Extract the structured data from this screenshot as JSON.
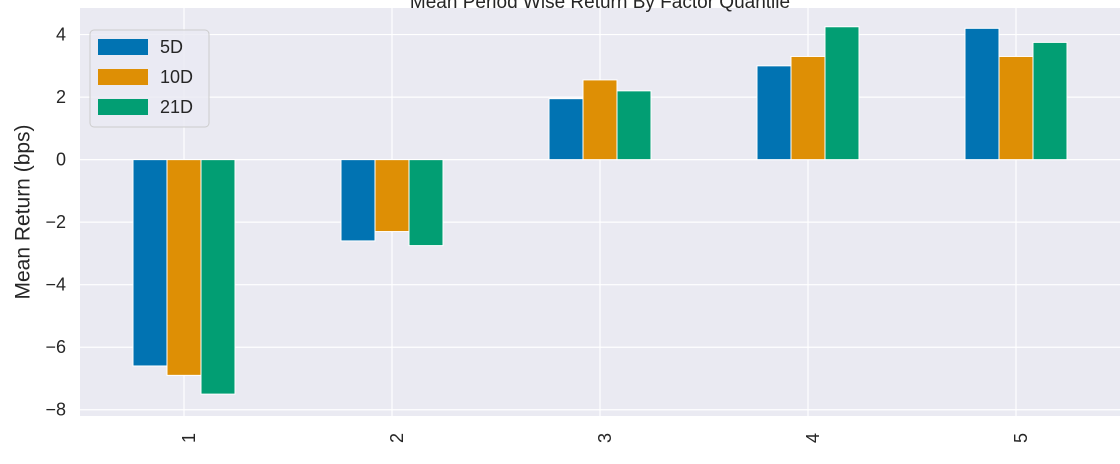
{
  "chart_data": {
    "type": "bar",
    "title": "Mean Period Wise Return By Factor Quantile",
    "xlabel": "",
    "ylabel": "Mean Return (bps)",
    "categories": [
      "1",
      "2",
      "3",
      "4",
      "5"
    ],
    "series": [
      {
        "name": "5D",
        "color": "#0173b2",
        "values": [
          -6.6,
          -2.6,
          1.95,
          3.0,
          4.2
        ]
      },
      {
        "name": "10D",
        "color": "#de8f05",
        "values": [
          -6.9,
          -2.3,
          2.55,
          3.3,
          3.3
        ]
      },
      {
        "name": "21D",
        "color": "#029e73",
        "values": [
          -7.5,
          -2.75,
          2.2,
          4.25,
          3.75
        ]
      }
    ],
    "ylim": [
      -8.2,
      4.85
    ],
    "yticks": [
      -8,
      -6,
      -4,
      -2,
      0,
      2,
      4
    ],
    "ytick_labels": [
      "−8",
      "−6",
      "−4",
      "−2",
      "0",
      "2",
      "4"
    ],
    "grid": true,
    "legend_position": "top-left",
    "background": "#eaeaf2"
  }
}
